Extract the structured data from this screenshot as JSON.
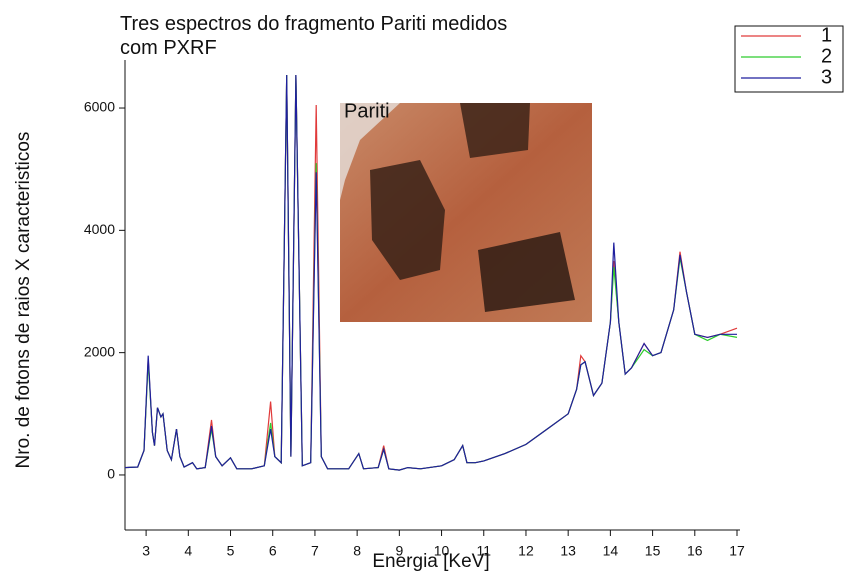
{
  "chart_data": {
    "type": "line",
    "title": "Tres espectros do fragmento Pariti medidos com PXRF",
    "x_label": "Energia [KeV]",
    "y_label": "Nro. de fotons de raios X caracteristicos",
    "annotation": "Pariti",
    "legend": "top-right",
    "xlim": [
      2.5,
      17
    ],
    "ylim": [
      -900,
      6540
    ],
    "xticks": [
      3,
      4,
      5,
      6,
      7,
      8,
      9,
      10,
      11,
      12,
      13,
      14,
      15,
      16,
      17
    ],
    "yticks": [
      0,
      2000,
      4000,
      6000
    ],
    "x": [
      2.5,
      2.8,
      2.95,
      3.05,
      3.15,
      3.2,
      3.27,
      3.35,
      3.4,
      3.5,
      3.6,
      3.72,
      3.8,
      3.9,
      4.1,
      4.2,
      4.4,
      4.55,
      4.65,
      4.8,
      5.0,
      5.15,
      5.5,
      5.8,
      5.95,
      6.05,
      6.2,
      6.33,
      6.43,
      6.55,
      6.7,
      6.9,
      7.03,
      7.15,
      7.3,
      7.8,
      8.04,
      8.15,
      8.5,
      8.63,
      8.75,
      9.0,
      9.2,
      9.5,
      10.0,
      10.3,
      10.5,
      10.6,
      10.8,
      11.0,
      11.5,
      12.0,
      12.5,
      13.0,
      13.2,
      13.3,
      13.4,
      13.6,
      13.8,
      14.0,
      14.08,
      14.2,
      14.35,
      14.5,
      14.8,
      15.0,
      15.2,
      15.5,
      15.65,
      15.8,
      16.0,
      16.3,
      16.6,
      17.0
    ],
    "series": [
      {
        "name": "1",
        "color": "#e03a3a",
        "values": [
          120,
          130,
          400,
          1900,
          700,
          480,
          1100,
          950,
          1000,
          400,
          250,
          750,
          300,
          130,
          200,
          100,
          120,
          900,
          300,
          150,
          280,
          100,
          100,
          150,
          1200,
          300,
          200,
          6540,
          300,
          6540,
          150,
          200,
          6050,
          300,
          100,
          100,
          350,
          100,
          120,
          480,
          100,
          80,
          120,
          100,
          150,
          250,
          480,
          200,
          200,
          230,
          350,
          500,
          750,
          1000,
          1400,
          1950,
          1850,
          1300,
          1500,
          2500,
          3500,
          2500,
          1650,
          1750,
          2150,
          1950,
          2000,
          2700,
          3650,
          3000,
          2300,
          2250,
          2300,
          2400
        ]
      },
      {
        "name": "2",
        "color": "#2ecc2e",
        "values": [
          120,
          130,
          400,
          1850,
          700,
          480,
          1100,
          950,
          1000,
          400,
          250,
          750,
          300,
          130,
          200,
          100,
          120,
          750,
          300,
          150,
          280,
          100,
          100,
          150,
          850,
          300,
          200,
          6540,
          300,
          6540,
          150,
          200,
          5100,
          300,
          100,
          100,
          350,
          100,
          120,
          420,
          100,
          80,
          120,
          100,
          150,
          250,
          480,
          200,
          200,
          230,
          350,
          500,
          750,
          1000,
          1400,
          1800,
          1850,
          1300,
          1500,
          2500,
          3400,
          2500,
          1650,
          1750,
          2050,
          1950,
          2000,
          2700,
          3550,
          3000,
          2300,
          2200,
          2300,
          2250
        ]
      },
      {
        "name": "3",
        "color": "#1f1f9e",
        "values": [
          120,
          130,
          400,
          1950,
          700,
          480,
          1100,
          950,
          1000,
          400,
          250,
          750,
          300,
          130,
          200,
          100,
          120,
          800,
          300,
          150,
          280,
          100,
          100,
          150,
          750,
          300,
          200,
          6540,
          300,
          6540,
          150,
          200,
          4950,
          300,
          100,
          100,
          350,
          100,
          120,
          420,
          100,
          80,
          120,
          100,
          150,
          250,
          480,
          200,
          200,
          230,
          350,
          500,
          750,
          1000,
          1400,
          1800,
          1850,
          1300,
          1500,
          2500,
          3800,
          2500,
          1650,
          1750,
          2150,
          1950,
          2000,
          2700,
          3600,
          3000,
          2300,
          2250,
          2300,
          2300
        ]
      }
    ]
  }
}
